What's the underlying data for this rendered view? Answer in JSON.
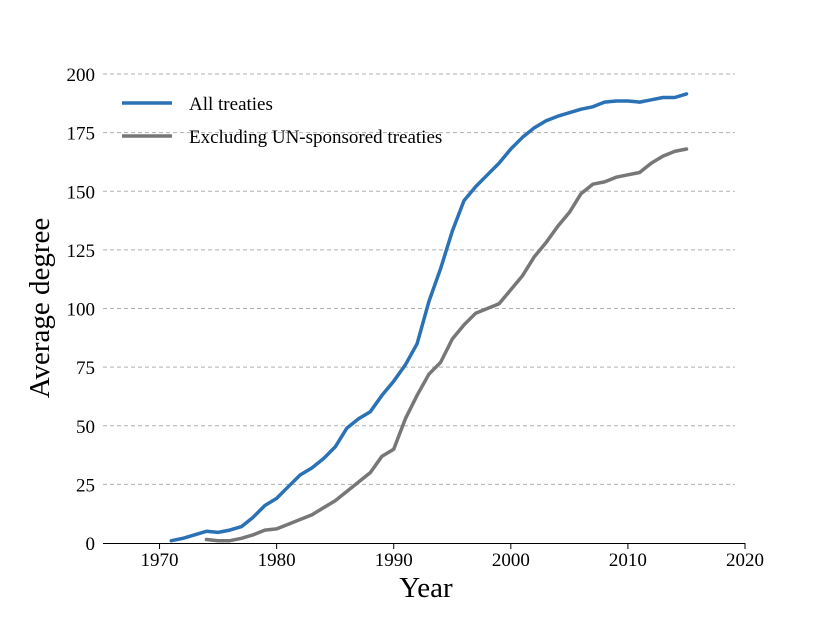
{
  "chart_data": {
    "type": "line",
    "xlabel": "Year",
    "ylabel": "Average degree",
    "xlim": [
      1965,
      2020
    ],
    "ylim": [
      0,
      200
    ],
    "x_ticks": [
      1970,
      1980,
      1990,
      2000,
      2010,
      2020
    ],
    "y_ticks": [
      0,
      25,
      50,
      75,
      100,
      125,
      150,
      175,
      200
    ],
    "grid": "horizontal-dashed",
    "legend_position": "top-left",
    "series": [
      {
        "name": "All treaties",
        "color": "#2a72b5",
        "x": [
          1971,
          1972,
          1973,
          1974,
          1975,
          1976,
          1977,
          1978,
          1979,
          1980,
          1981,
          1982,
          1983,
          1984,
          1985,
          1986,
          1987,
          1988,
          1989,
          1990,
          1991,
          1992,
          1993,
          1994,
          1995,
          1996,
          1997,
          1998,
          1999,
          2000,
          2001,
          2002,
          2003,
          2004,
          2005,
          2006,
          2007,
          2008,
          2009,
          2010,
          2011,
          2012,
          2013,
          2014,
          2015
        ],
        "y": [
          1,
          2,
          3.5,
          5,
          4.5,
          5.5,
          7,
          11,
          16,
          19,
          24,
          29,
          32,
          36,
          41,
          49,
          53,
          56,
          63,
          69,
          76,
          85,
          103,
          117,
          133,
          146,
          152,
          157,
          162,
          168,
          173,
          177,
          180,
          182,
          183.5,
          185,
          186,
          188,
          188.5,
          188.5,
          188,
          189,
          190,
          190,
          191.5
        ]
      },
      {
        "name": "Excluding UN-sponsored treaties",
        "color": "#777777",
        "x": [
          1974,
          1975,
          1976,
          1977,
          1978,
          1979,
          1980,
          1981,
          1982,
          1983,
          1984,
          1985,
          1986,
          1987,
          1988,
          1989,
          1990,
          1991,
          1992,
          1993,
          1994,
          1995,
          1996,
          1997,
          1998,
          1999,
          2000,
          2001,
          2002,
          2003,
          2004,
          2005,
          2006,
          2007,
          2008,
          2009,
          2010,
          2011,
          2012,
          2013,
          2014,
          2015
        ],
        "y": [
          1.5,
          1,
          1,
          2,
          3.5,
          5.5,
          6,
          8,
          10,
          12,
          15,
          18,
          22,
          26,
          30,
          37,
          40,
          53,
          63,
          72,
          77,
          87,
          93,
          98,
          100,
          102,
          108,
          114,
          122,
          128,
          135,
          141,
          149,
          153,
          154,
          156,
          157,
          158,
          162,
          165,
          167,
          168
        ]
      }
    ]
  }
}
